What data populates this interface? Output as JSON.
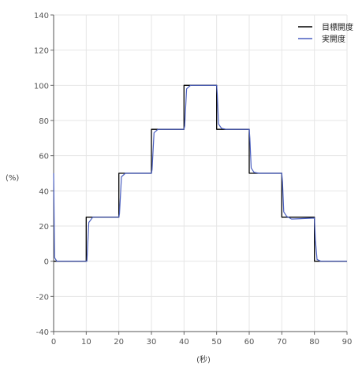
{
  "chart_data": {
    "type": "line",
    "xlabel": "(秒)",
    "ylabel": "(%)",
    "xlim": [
      0,
      90
    ],
    "ylim": [
      -40,
      140
    ],
    "xticks": [
      0,
      10,
      20,
      30,
      40,
      50,
      60,
      70,
      80,
      90
    ],
    "yticks": [
      -40,
      -20,
      0,
      20,
      40,
      60,
      80,
      100,
      120,
      140
    ],
    "grid": true,
    "legend_position": "top-right",
    "series": [
      {
        "name": "目標開度",
        "color": "#000000",
        "x": [
          0,
          10,
          10,
          20,
          20,
          30,
          30,
          40,
          40,
          50,
          50,
          60,
          60,
          70,
          70,
          80,
          80,
          90
        ],
        "y": [
          0,
          0,
          25,
          25,
          50,
          50,
          75,
          75,
          100,
          100,
          75,
          75,
          50,
          50,
          25,
          25,
          0,
          0
        ]
      },
      {
        "name": "実開度",
        "color": "#4a5fc1",
        "x": [
          0,
          0.3,
          1,
          10.2,
          10.8,
          12,
          20,
          20.2,
          20.8,
          22,
          30,
          30.2,
          30.8,
          32,
          40,
          40.2,
          40.8,
          42,
          50,
          50.2,
          50.6,
          51.5,
          53,
          60,
          60.2,
          60.6,
          61.5,
          63,
          70,
          70.2,
          70.6,
          71.5,
          73,
          80,
          80.3,
          80.8,
          82,
          90
        ],
        "y": [
          50,
          2,
          0,
          0,
          22,
          25,
          25,
          27,
          48,
          50,
          50,
          52,
          73,
          75,
          75,
          77,
          98,
          100,
          100,
          95,
          78,
          75.5,
          75,
          75,
          70,
          53,
          50.5,
          50,
          50,
          45,
          28,
          25.5,
          24,
          24.5,
          12,
          1,
          0,
          0
        ]
      }
    ]
  }
}
